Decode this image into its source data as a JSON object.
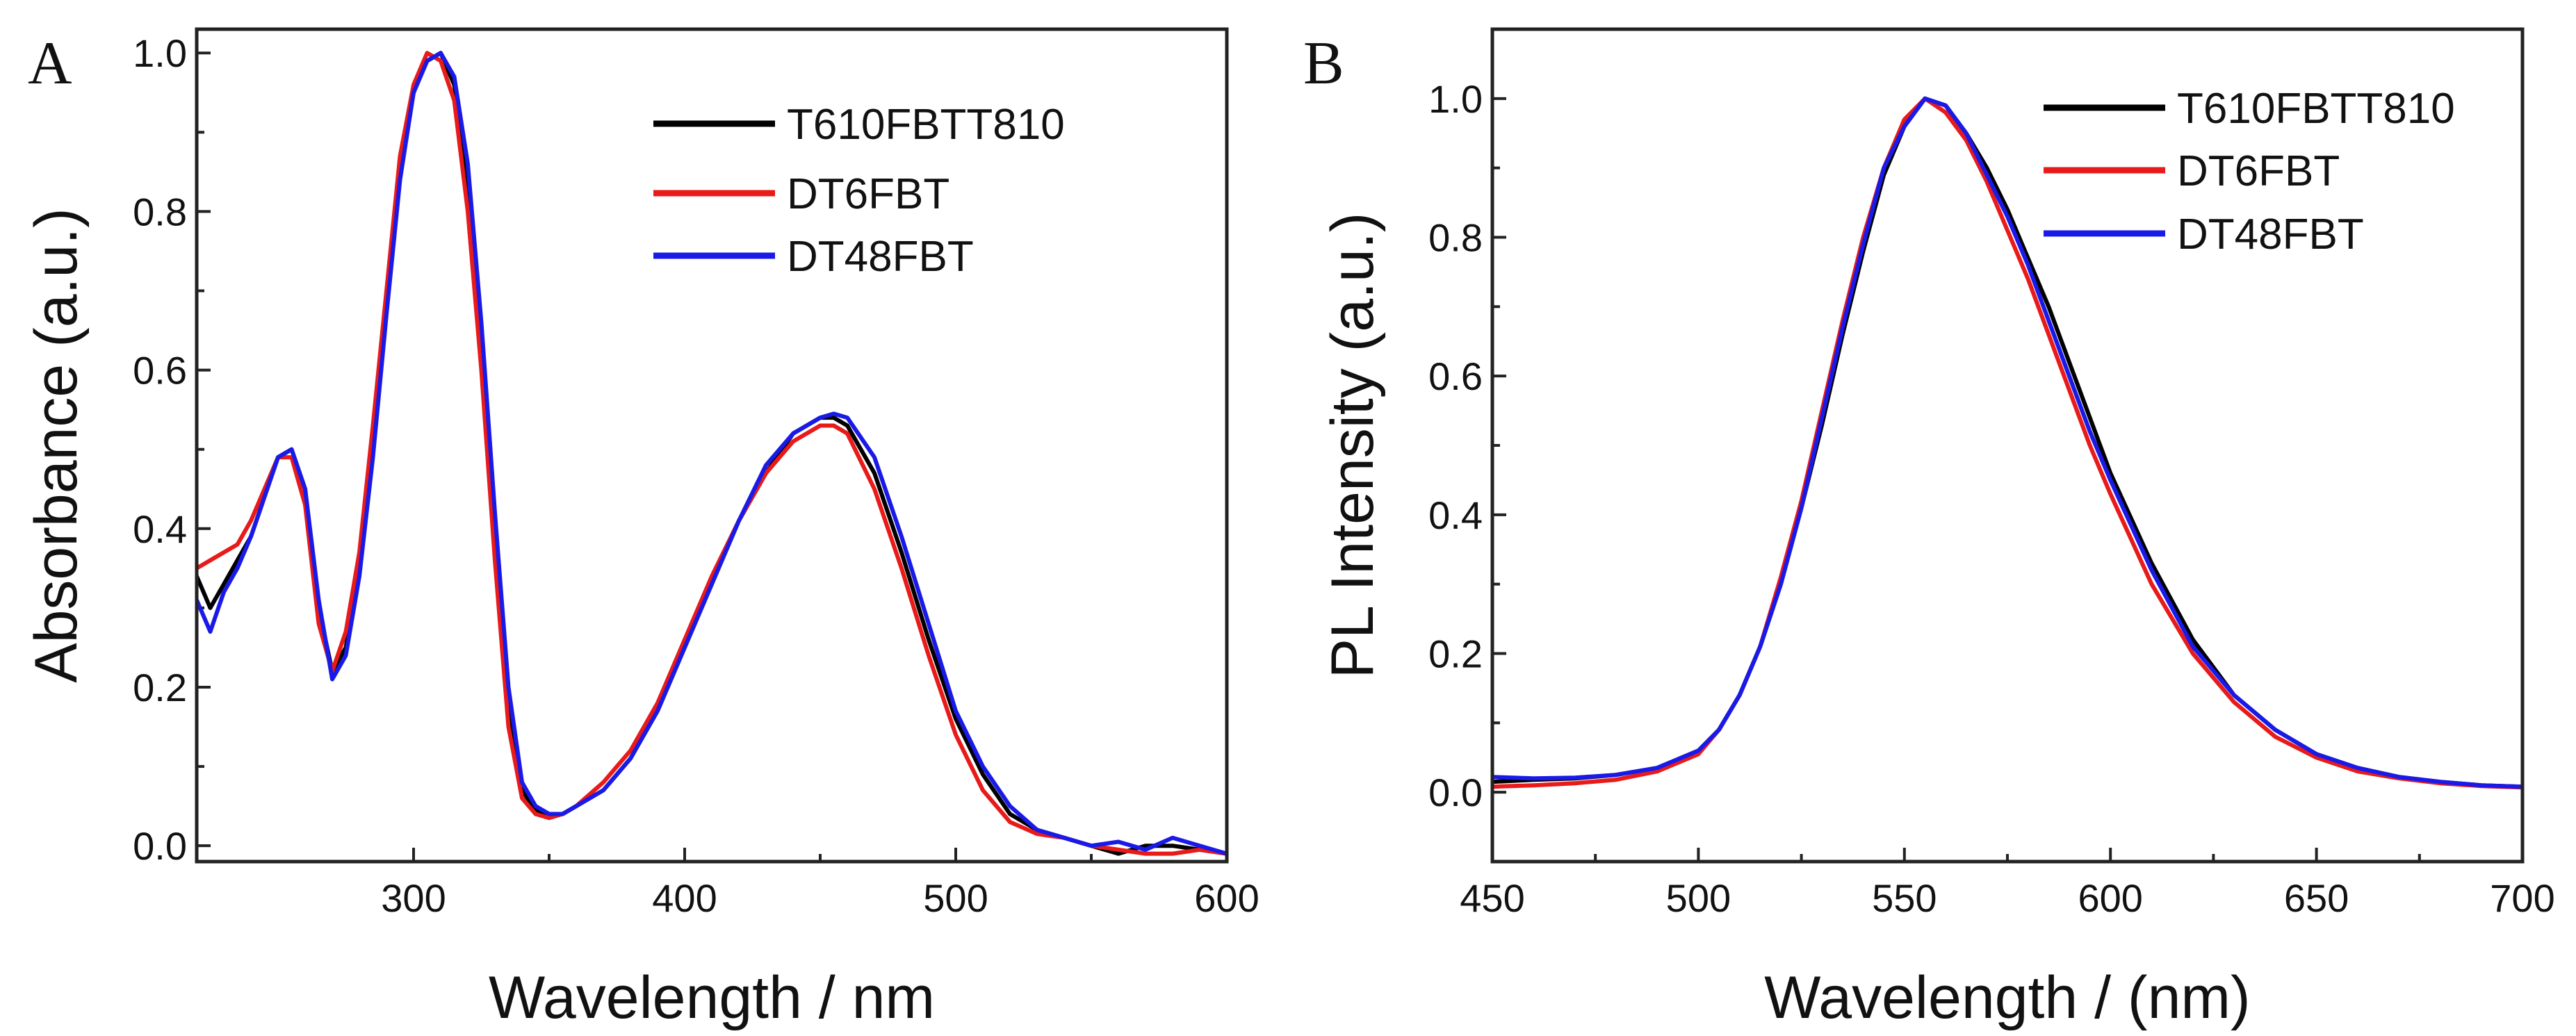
{
  "chart_data": [
    {
      "type": "line",
      "panel_label": "A",
      "xlabel": "Wavelength / nm",
      "ylabel": "Absorbance (a.u.)",
      "xlim": [
        220,
        600
      ],
      "ylim": [
        -0.02,
        1.03
      ],
      "xticks": [
        300,
        400,
        500,
        600
      ],
      "xtick_labels": [
        "300",
        "400",
        "500",
        "600"
      ],
      "yticks": [
        0.0,
        0.2,
        0.4,
        0.6,
        0.8,
        1.0
      ],
      "ytick_labels": [
        "0.0",
        "0.2",
        "0.4",
        "0.6",
        "0.8",
        "1.0"
      ],
      "legend_position": "top-right",
      "series": [
        {
          "name": "T610FBTT810",
          "color": "#000000",
          "x": [
            220,
            225,
            230,
            235,
            240,
            245,
            250,
            255,
            260,
            265,
            270,
            275,
            280,
            285,
            290,
            295,
            300,
            305,
            310,
            315,
            320,
            325,
            330,
            335,
            340,
            345,
            350,
            355,
            360,
            370,
            380,
            390,
            400,
            410,
            420,
            430,
            440,
            450,
            455,
            460,
            470,
            480,
            490,
            500,
            510,
            520,
            530,
            540,
            550,
            560,
            570,
            580,
            590,
            600
          ],
          "y": [
            0.34,
            0.3,
            0.33,
            0.36,
            0.39,
            0.44,
            0.49,
            0.5,
            0.45,
            0.3,
            0.22,
            0.25,
            0.35,
            0.5,
            0.68,
            0.85,
            0.95,
            0.99,
            1.0,
            0.96,
            0.84,
            0.64,
            0.4,
            0.18,
            0.07,
            0.045,
            0.038,
            0.04,
            0.05,
            0.07,
            0.11,
            0.17,
            0.25,
            0.33,
            0.41,
            0.47,
            0.52,
            0.54,
            0.54,
            0.53,
            0.47,
            0.37,
            0.26,
            0.16,
            0.09,
            0.04,
            0.02,
            0.01,
            0.0,
            -0.01,
            0.0,
            0.0,
            -0.005,
            -0.01
          ]
        },
        {
          "name": "DT6FBT",
          "color": "#e81a1a",
          "x": [
            220,
            225,
            230,
            235,
            240,
            245,
            250,
            255,
            260,
            265,
            270,
            275,
            280,
            285,
            290,
            295,
            300,
            305,
            310,
            315,
            320,
            325,
            330,
            335,
            340,
            345,
            350,
            355,
            360,
            370,
            380,
            390,
            400,
            410,
            420,
            430,
            440,
            450,
            455,
            460,
            470,
            480,
            490,
            500,
            510,
            520,
            530,
            540,
            550,
            560,
            570,
            580,
            590,
            600
          ],
          "y": [
            0.35,
            0.36,
            0.37,
            0.38,
            0.41,
            0.45,
            0.49,
            0.49,
            0.43,
            0.28,
            0.22,
            0.27,
            0.37,
            0.53,
            0.7,
            0.87,
            0.96,
            1.0,
            0.99,
            0.94,
            0.8,
            0.6,
            0.36,
            0.15,
            0.06,
            0.04,
            0.035,
            0.04,
            0.05,
            0.08,
            0.12,
            0.18,
            0.26,
            0.34,
            0.41,
            0.47,
            0.51,
            0.53,
            0.53,
            0.52,
            0.45,
            0.35,
            0.24,
            0.14,
            0.07,
            0.03,
            0.015,
            0.01,
            0.0,
            -0.005,
            -0.01,
            -0.01,
            -0.005,
            -0.01
          ]
        },
        {
          "name": "DT48FBT",
          "color": "#1a1ae8",
          "x": [
            220,
            225,
            230,
            235,
            240,
            245,
            250,
            255,
            260,
            265,
            270,
            275,
            280,
            285,
            290,
            295,
            300,
            305,
            310,
            315,
            320,
            325,
            330,
            335,
            340,
            345,
            350,
            355,
            360,
            370,
            380,
            390,
            400,
            410,
            420,
            430,
            440,
            450,
            455,
            460,
            470,
            480,
            490,
            500,
            510,
            520,
            530,
            540,
            550,
            560,
            570,
            580,
            590,
            600
          ],
          "y": [
            0.31,
            0.27,
            0.32,
            0.35,
            0.39,
            0.44,
            0.49,
            0.5,
            0.45,
            0.31,
            0.21,
            0.24,
            0.34,
            0.49,
            0.67,
            0.84,
            0.95,
            0.99,
            1.0,
            0.97,
            0.86,
            0.66,
            0.42,
            0.2,
            0.08,
            0.05,
            0.04,
            0.04,
            0.05,
            0.07,
            0.11,
            0.17,
            0.25,
            0.33,
            0.41,
            0.48,
            0.52,
            0.54,
            0.545,
            0.54,
            0.49,
            0.39,
            0.28,
            0.17,
            0.1,
            0.05,
            0.02,
            0.01,
            0.0,
            0.005,
            -0.005,
            0.01,
            0.0,
            -0.01
          ]
        }
      ]
    },
    {
      "type": "line",
      "panel_label": "B",
      "xlabel": "Wavelength / (nm)",
      "ylabel": "PL Intensity (a.u.)",
      "xlim": [
        450,
        700
      ],
      "ylim": [
        -0.1,
        1.1
      ],
      "xticks": [
        450,
        500,
        550,
        600,
        650,
        700
      ],
      "xtick_labels": [
        "450",
        "500",
        "550",
        "600",
        "650",
        "700"
      ],
      "yticks": [
        0.0,
        0.2,
        0.4,
        0.6,
        0.8,
        1.0
      ],
      "ytick_labels": [
        "0.0",
        "0.2",
        "0.4",
        "0.6",
        "0.8",
        "1.0"
      ],
      "legend_position": "top-right",
      "series": [
        {
          "name": "T610FBTT810",
          "color": "#000000",
          "x": [
            450,
            460,
            470,
            480,
            490,
            500,
            505,
            510,
            515,
            520,
            525,
            530,
            535,
            540,
            545,
            550,
            555,
            560,
            565,
            570,
            575,
            580,
            585,
            590,
            595,
            600,
            610,
            620,
            630,
            640,
            650,
            660,
            670,
            680,
            690,
            700
          ],
          "y": [
            0.015,
            0.018,
            0.02,
            0.025,
            0.035,
            0.06,
            0.09,
            0.14,
            0.21,
            0.3,
            0.41,
            0.53,
            0.66,
            0.78,
            0.89,
            0.96,
            1.0,
            0.99,
            0.95,
            0.9,
            0.84,
            0.77,
            0.7,
            0.62,
            0.54,
            0.46,
            0.33,
            0.22,
            0.14,
            0.09,
            0.055,
            0.035,
            0.022,
            0.015,
            0.01,
            0.008
          ]
        },
        {
          "name": "DT6FBT",
          "color": "#e81a1a",
          "x": [
            450,
            460,
            470,
            480,
            490,
            500,
            505,
            510,
            515,
            520,
            525,
            530,
            535,
            540,
            545,
            550,
            555,
            560,
            565,
            570,
            575,
            580,
            585,
            590,
            595,
            600,
            610,
            620,
            630,
            640,
            650,
            660,
            670,
            680,
            690,
            700
          ],
          "y": [
            0.008,
            0.01,
            0.013,
            0.018,
            0.03,
            0.055,
            0.09,
            0.14,
            0.21,
            0.31,
            0.42,
            0.55,
            0.68,
            0.8,
            0.9,
            0.97,
            1.0,
            0.98,
            0.94,
            0.88,
            0.81,
            0.74,
            0.66,
            0.58,
            0.5,
            0.43,
            0.3,
            0.2,
            0.13,
            0.08,
            0.05,
            0.03,
            0.02,
            0.013,
            0.009,
            0.007
          ]
        },
        {
          "name": "DT48FBT",
          "color": "#1a1ae8",
          "x": [
            450,
            460,
            470,
            480,
            490,
            500,
            505,
            510,
            515,
            520,
            525,
            530,
            535,
            540,
            545,
            550,
            555,
            560,
            565,
            570,
            575,
            580,
            585,
            590,
            595,
            600,
            610,
            620,
            630,
            640,
            650,
            660,
            670,
            680,
            690,
            700
          ],
          "y": [
            0.022,
            0.02,
            0.021,
            0.025,
            0.035,
            0.06,
            0.09,
            0.14,
            0.21,
            0.3,
            0.41,
            0.54,
            0.67,
            0.79,
            0.9,
            0.96,
            1.0,
            0.99,
            0.95,
            0.89,
            0.83,
            0.76,
            0.68,
            0.6,
            0.52,
            0.45,
            0.32,
            0.21,
            0.14,
            0.09,
            0.055,
            0.035,
            0.022,
            0.015,
            0.01,
            0.008
          ]
        }
      ]
    }
  ]
}
